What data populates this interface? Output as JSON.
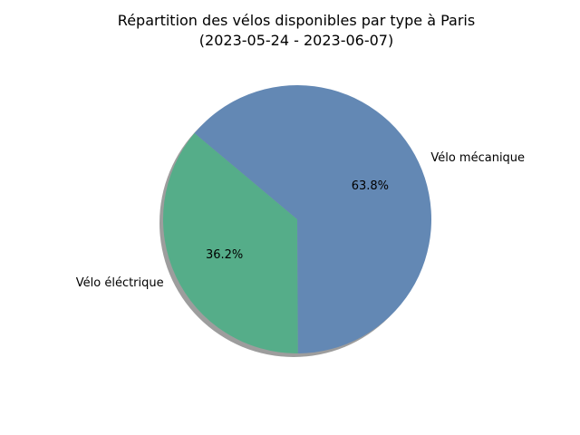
{
  "chart_data": {
    "type": "pie",
    "title_lines": [
      "Répartition des vélos disponibles par type à Paris",
      "(2023-05-24 - 2023-06-07)"
    ],
    "slices": [
      {
        "label": "Vélo éléctrique",
        "value": 36.2,
        "pct_label": "36.2%",
        "color": "#55ad89"
      },
      {
        "label": "Vélo mécanique",
        "value": 63.8,
        "pct_label": "63.8%",
        "color": "#6388b4"
      }
    ],
    "start_angle_deg": 140,
    "shadow": true,
    "shadow_color": "#8c8c8c"
  }
}
